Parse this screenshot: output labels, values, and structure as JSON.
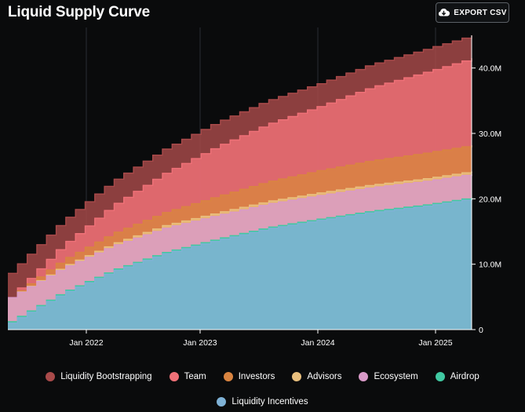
{
  "header": {
    "title": "Liquid Supply Curve",
    "export_label": "EXPORT CSV"
  },
  "colors": {
    "background": "#0a0b0c",
    "axis": "#ffffff",
    "grid": "#2b2e33"
  },
  "chart_data": {
    "type": "area",
    "stacked": true,
    "title": "Liquid Supply Curve",
    "xlabel": "",
    "ylabel": "",
    "x_ticks": [
      "Jan 2022",
      "Jan 2023",
      "Jan 2024",
      "Jan 2025"
    ],
    "y_ticks": [
      "0",
      "10.0M",
      "20.0M",
      "30.0M",
      "40.0M"
    ],
    "ylim": [
      0,
      45000000
    ],
    "x_range": [
      "2021-05",
      "2025-05"
    ],
    "grid": "vertical",
    "legend_position": "bottom",
    "steps": "monthly",
    "series": [
      {
        "name": "Liquidity Incentives",
        "color": "#7fb2d6",
        "values": [
          1000000,
          5400000,
          8900000,
          11600000,
          13600000,
          15400000,
          16700000,
          17900000,
          18800000,
          20000000
        ]
      },
      {
        "name": "Airdrop",
        "color": "#40c9a2",
        "values": [
          200000,
          200000,
          200000,
          200000,
          200000,
          200000,
          200000,
          200000,
          200000,
          200000
        ]
      },
      {
        "name": "Ecosystem",
        "color": "#d99ac8",
        "values": [
          3700000,
          3700000,
          3700000,
          3700000,
          3600000,
          3600000,
          3600000,
          3600000,
          3600000,
          3600000
        ]
      },
      {
        "name": "Advisors",
        "color": "#e9c07e",
        "values": [
          0,
          200000,
          300000,
          400000,
          400000,
          400000,
          400000,
          400000,
          400000,
          400000
        ]
      },
      {
        "name": "Investors",
        "color": "#d98440",
        "values": [
          0,
          1000000,
          1600000,
          2000000,
          2500000,
          3000000,
          3400000,
          3700000,
          3900000,
          4000000
        ]
      },
      {
        "name": "Team",
        "color": "#f07178",
        "values": [
          0,
          2200000,
          4300000,
          6000000,
          7600000,
          8800000,
          9800000,
          11200000,
          12300000,
          13300000
        ]
      },
      {
        "name": "Liquidity Bootstrapping",
        "color": "#a94a4a",
        "values": [
          3700000,
          3700000,
          3700000,
          3700000,
          3700000,
          3600000,
          3500000,
          3500000,
          3500000,
          3500000
        ]
      }
    ]
  },
  "legend": {
    "items": [
      {
        "label": "Liquidity Bootstrapping",
        "color": "#a94a4a"
      },
      {
        "label": "Team",
        "color": "#f07178"
      },
      {
        "label": "Investors",
        "color": "#d98440"
      },
      {
        "label": "Advisors",
        "color": "#e9c07e"
      },
      {
        "label": "Ecosystem",
        "color": "#d99ac8"
      },
      {
        "label": "Airdrop",
        "color": "#40c9a2"
      },
      {
        "label": "Liquidity Incentives",
        "color": "#7fb2d6"
      }
    ]
  }
}
